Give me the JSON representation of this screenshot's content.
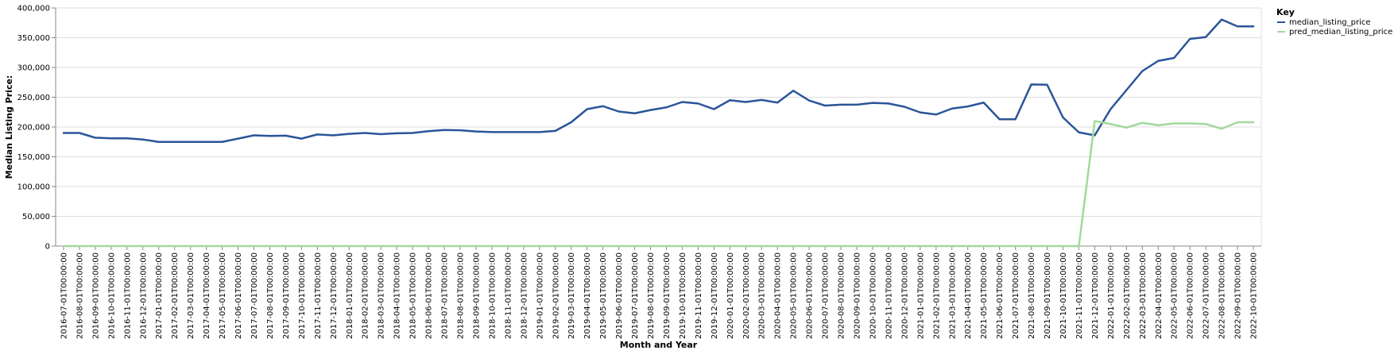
{
  "chart_data": {
    "type": "line",
    "title": "",
    "xlabel": "Month and Year",
    "ylabel": "Median Listing Price:",
    "ylim": [
      0,
      400000
    ],
    "y_ticks": [
      "0",
      "50,000",
      "100,000",
      "150,000",
      "200,000",
      "250,000",
      "300,000",
      "350,000",
      "400,000"
    ],
    "y_tick_values": [
      0,
      50000,
      100000,
      150000,
      200000,
      250000,
      300000,
      350000,
      400000
    ],
    "grid": true,
    "legend": {
      "title": "Key",
      "placement": "top-right"
    },
    "x": [
      "2016-07-01T00:00:00",
      "2016-08-01T00:00:00",
      "2016-09-01T00:00:00",
      "2016-10-01T00:00:00",
      "2016-11-01T00:00:00",
      "2016-12-01T00:00:00",
      "2017-01-01T00:00:00",
      "2017-02-01T00:00:00",
      "2017-03-01T00:00:00",
      "2017-04-01T00:00:00",
      "2017-05-01T00:00:00",
      "2017-06-01T00:00:00",
      "2017-07-01T00:00:00",
      "2017-08-01T00:00:00",
      "2017-09-01T00:00:00",
      "2017-10-01T00:00:00",
      "2017-11-01T00:00:00",
      "2017-12-01T00:00:00",
      "2018-01-01T00:00:00",
      "2018-02-01T00:00:00",
      "2018-03-01T00:00:00",
      "2018-04-01T00:00:00",
      "2018-05-01T00:00:00",
      "2018-06-01T00:00:00",
      "2018-07-01T00:00:00",
      "2018-08-01T00:00:00",
      "2018-09-01T00:00:00",
      "2018-10-01T00:00:00",
      "2018-11-01T00:00:00",
      "2018-12-01T00:00:00",
      "2019-01-01T00:00:00",
      "2019-02-01T00:00:00",
      "2019-03-01T00:00:00",
      "2019-04-01T00:00:00",
      "2019-05-01T00:00:00",
      "2019-06-01T00:00:00",
      "2019-07-01T00:00:00",
      "2019-08-01T00:00:00",
      "2019-09-01T00:00:00",
      "2019-10-01T00:00:00",
      "2019-11-01T00:00:00",
      "2019-12-01T00:00:00",
      "2020-01-01T00:00:00",
      "2020-02-01T00:00:00",
      "2020-03-01T00:00:00",
      "2020-04-01T00:00:00",
      "2020-05-01T00:00:00",
      "2020-06-01T00:00:00",
      "2020-07-01T00:00:00",
      "2020-08-01T00:00:00",
      "2020-09-01T00:00:00",
      "2020-10-01T00:00:00",
      "2020-11-01T00:00:00",
      "2020-12-01T00:00:00",
      "2021-01-01T00:00:00",
      "2021-02-01T00:00:00",
      "2021-03-01T00:00:00",
      "2021-04-01T00:00:00",
      "2021-05-01T00:00:00",
      "2021-06-01T00:00:00",
      "2021-07-01T00:00:00",
      "2021-08-01T00:00:00",
      "2021-09-01T00:00:00",
      "2021-10-01T00:00:00",
      "2021-11-01T00:00:00",
      "2021-12-01T00:00:00",
      "2022-01-01T00:00:00",
      "2022-02-01T00:00:00",
      "2022-03-01T00:00:00",
      "2022-04-01T00:00:00",
      "2022-05-01T00:00:00",
      "2022-06-01T00:00:00",
      "2022-07-01T00:00:00",
      "2022-08-01T00:00:00",
      "2022-09-01T00:00:00",
      "2022-10-01T00:00:00"
    ],
    "series": [
      {
        "name": "median_listing_price",
        "color": "#2a5599",
        "values": [
          190000,
          190000,
          182000,
          181000,
          181000,
          179000,
          175000,
          175000,
          175000,
          175000,
          175000,
          180500,
          186000,
          185000,
          185500,
          180500,
          187500,
          186000,
          188500,
          190000,
          188000,
          189500,
          190000,
          193000,
          195000,
          194500,
          192500,
          191500,
          191500,
          191500,
          191500,
          193500,
          208000,
          230000,
          235000,
          226000,
          223000,
          228500,
          233000,
          242000,
          239500,
          230000,
          245000,
          242000,
          245500,
          241000,
          261000,
          244500,
          236000,
          237500,
          237500,
          240500,
          239500,
          234000,
          224500,
          221000,
          231000,
          234500,
          241000,
          213000,
          213000,
          271500,
          271000,
          216000,
          191000,
          186000,
          230000,
          262000,
          294000,
          311000,
          316000,
          348000,
          351000,
          380500,
          369000,
          369000
        ]
      },
      {
        "name": "pred_median_listing_price",
        "color": "#a1d99b",
        "values": [
          0,
          0,
          0,
          0,
          0,
          0,
          0,
          0,
          0,
          0,
          0,
          0,
          0,
          0,
          0,
          0,
          0,
          0,
          0,
          0,
          0,
          0,
          0,
          0,
          0,
          0,
          0,
          0,
          0,
          0,
          0,
          0,
          0,
          0,
          0,
          0,
          0,
          0,
          0,
          0,
          0,
          0,
          0,
          0,
          0,
          0,
          0,
          0,
          0,
          0,
          0,
          0,
          0,
          0,
          0,
          0,
          0,
          0,
          0,
          0,
          0,
          0,
          0,
          0,
          0,
          210000,
          205000,
          199000,
          207000,
          203000,
          206000,
          206000,
          205000,
          197000,
          208000,
          208000
        ]
      }
    ]
  }
}
